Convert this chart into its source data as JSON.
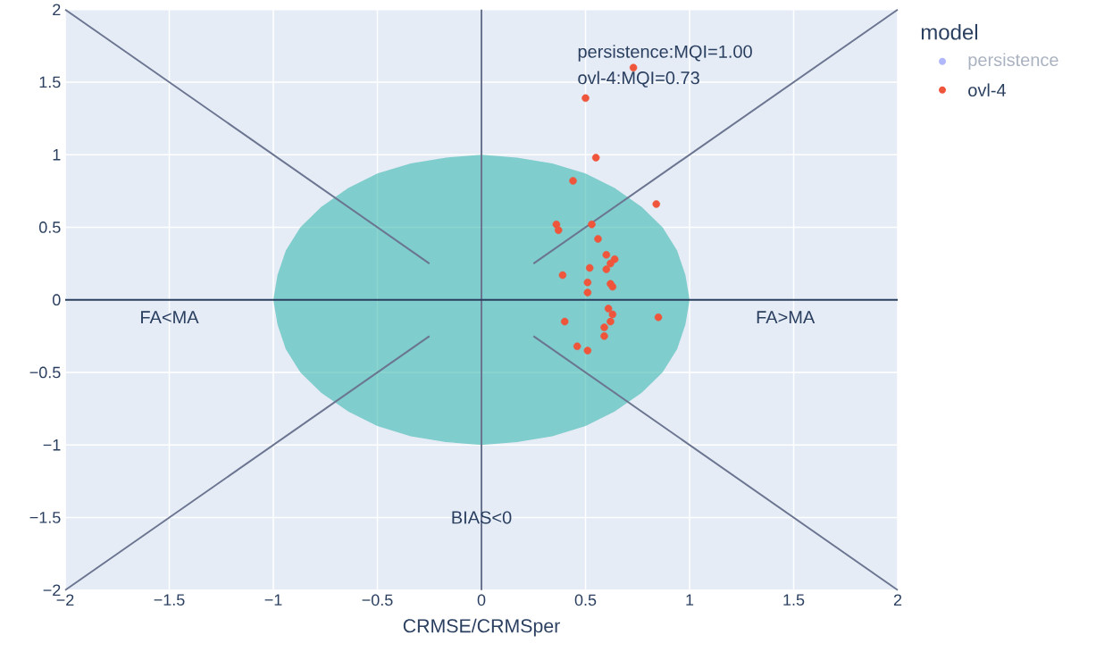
{
  "chart_data": {
    "type": "scatter",
    "xlabel": "CRMSE/CRMSper",
    "legend_title": "model",
    "legend": "right",
    "grid": true,
    "xlim": [
      -2,
      2
    ],
    "ylim": [
      -2,
      2
    ],
    "xticks": [
      {
        "value": -2,
        "label": "−2"
      },
      {
        "value": -1.5,
        "label": "−1.5"
      },
      {
        "value": -1,
        "label": "−1"
      },
      {
        "value": -0.5,
        "label": "−0.5"
      },
      0,
      0.5,
      1,
      1.5,
      2
    ],
    "yticks": [
      {
        "value": -2,
        "label": "−2"
      },
      {
        "value": -1.5,
        "label": "−1.5"
      },
      {
        "value": -1,
        "label": "−1"
      },
      {
        "value": -0.5,
        "label": "−0.5"
      },
      0,
      0.5,
      1,
      1.5,
      2
    ],
    "series": [
      {
        "name": "persistence",
        "color": "#b1b7fc",
        "marker": "circle"
      },
      {
        "name": "ovl-4",
        "color": "#ef553b",
        "marker": "circle",
        "x": [
          0.73,
          0.5,
          0.55,
          0.44,
          0.84,
          0.36,
          0.37,
          0.53,
          0.56,
          0.6,
          0.64,
          0.62,
          0.6,
          0.52,
          0.39,
          0.51,
          0.62,
          0.63,
          0.51,
          0.61,
          0.63,
          0.62,
          0.85,
          0.4,
          0.59,
          0.59,
          0.46,
          0.51
        ],
        "values": [
          1.6,
          1.39,
          0.98,
          0.82,
          0.66,
          0.52,
          0.48,
          0.52,
          0.42,
          0.31,
          0.28,
          0.25,
          0.21,
          0.22,
          0.17,
          0.12,
          0.11,
          0.09,
          0.05,
          -0.06,
          -0.1,
          -0.15,
          -0.12,
          -0.15,
          -0.19,
          -0.25,
          -0.32,
          -0.35
        ]
      },
      {
        "type": "area",
        "color": "#19aea2",
        "x": [
          1,
          0.98,
          0.94,
          0.87,
          0.77,
          0.64,
          0.5,
          0.34,
          0.17,
          0,
          -0.17,
          -0.34,
          -0.5,
          -0.64,
          -0.77,
          -0.87,
          -0.94,
          -0.98,
          -1,
          -0.98,
          -0.94,
          -0.87,
          -0.77,
          -0.64,
          -0.5,
          -0.34,
          -0.17,
          0,
          0.17,
          0.34,
          0.5,
          0.64,
          0.77,
          0.87,
          0.94,
          0.98
        ],
        "values": [
          0,
          0.17,
          0.34,
          0.5,
          0.64,
          0.77,
          0.87,
          0.94,
          0.98,
          1,
          0.98,
          0.94,
          0.87,
          0.77,
          0.64,
          0.5,
          0.34,
          0.17,
          0,
          -0.17,
          -0.34,
          -0.5,
          -0.64,
          -0.77,
          -0.87,
          -0.94,
          -0.98,
          -1,
          -0.98,
          -0.94,
          -0.87,
          -0.77,
          -0.64,
          -0.5,
          -0.34,
          -0.17
        ]
      },
      {
        "type": "line",
        "color": "#6b7590",
        "x": [
          -2,
          -0.25
        ],
        "values": [
          2,
          0.25
        ]
      },
      {
        "type": "line",
        "color": "#6b7590",
        "x": [
          0.25,
          2
        ],
        "values": [
          0.25,
          2
        ]
      },
      {
        "type": "line",
        "color": "#6b7590",
        "x": [
          -2,
          -0.25
        ],
        "values": [
          -2,
          -0.25
        ]
      },
      {
        "type": "line",
        "color": "#6b7590",
        "x": [
          0.25,
          2
        ],
        "values": [
          -0.25,
          -2
        ]
      }
    ],
    "ref_lines": [
      {
        "axis": "x",
        "value": 0,
        "color": "#6b7590"
      },
      {
        "axis": "y",
        "value": 0,
        "color": "#2a3f5f"
      }
    ],
    "annotations": [
      "persistence:MQI=1.00",
      "ovl-4:MQI=0.73",
      "FA<MA",
      "FA>MA",
      "BIAS<0"
    ]
  }
}
